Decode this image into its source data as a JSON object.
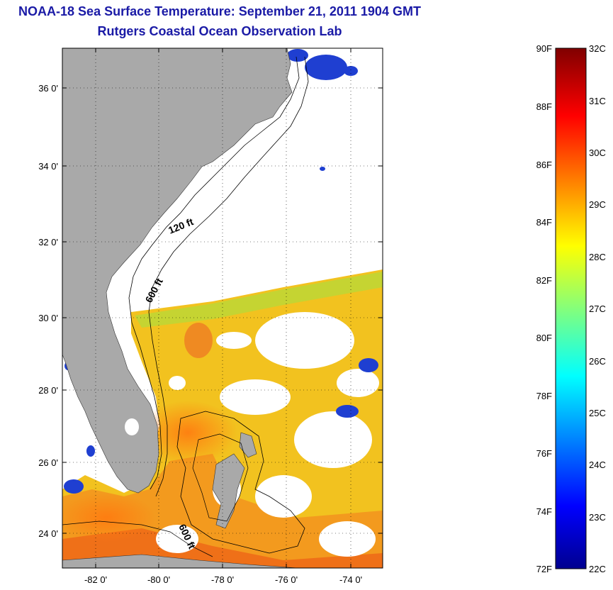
{
  "title": {
    "line1": "NOAA-18 Sea Surface Temperature:  September 21, 2011 1904 GMT",
    "line2": "Rutgers Coastal Ocean Observation Lab"
  },
  "map": {
    "lat_labels": [
      "36 0'",
      "34 0'",
      "32 0'",
      "30 0'",
      "28 0'",
      "26 0'",
      "24 0'"
    ],
    "lon_labels": [
      "-82 0'",
      "-80 0'",
      "-78 0'",
      "-76 0'",
      "-74 0'"
    ],
    "contours": [
      "120 ft",
      "600 ft",
      "600 ft"
    ],
    "colors": {
      "land": "#a9a9a9",
      "cloud": "#ffffff",
      "warm": "#ff8c1a",
      "mid": "#ffd21a",
      "cool": "#1f3fd1"
    }
  },
  "colorbar": {
    "f_labels": [
      "90F",
      "88F",
      "86F",
      "84F",
      "82F",
      "80F",
      "78F",
      "76F",
      "74F",
      "72F"
    ],
    "c_labels": [
      "32C",
      "31C",
      "30C",
      "29C",
      "28C",
      "27C",
      "26C",
      "25C",
      "24C",
      "23C",
      "22C"
    ],
    "range_f": [
      72,
      90
    ],
    "range_c": [
      22,
      32
    ],
    "colormap": "jet"
  }
}
